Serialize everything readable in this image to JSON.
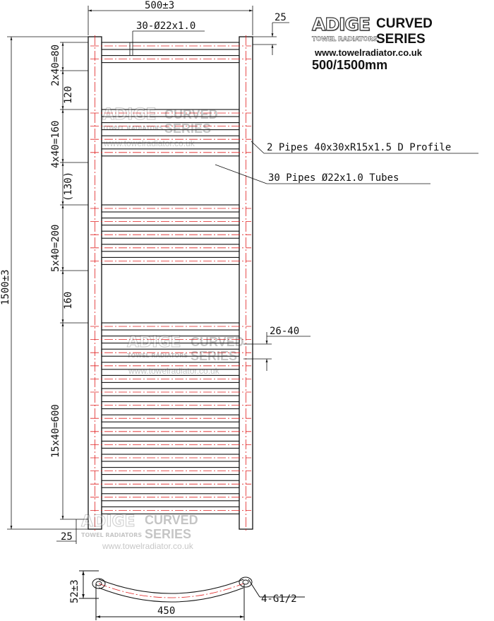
{
  "brand": {
    "name": "ADIGE",
    "sub": "TOWEL RADIATORS",
    "series_line1": "CURVED",
    "series_line2": "SERIES",
    "url": "www.towelradiator.co.uk",
    "size": "500/1500mm"
  },
  "dimensions": {
    "overall_width": "500±3",
    "rail_offset": "25",
    "tube_spec": "30-Ø22x1.0",
    "overall_height": "1500±3",
    "bottom_offset": "25",
    "group1": "2x40=80",
    "gap1": "120",
    "group2": "4x40=160",
    "gap2": "(130)",
    "group3": "5x40=200",
    "gap3": "160",
    "group4": "15x40=600",
    "tube_gap": "26-40",
    "depth": "52±3",
    "centres": "450",
    "connections": "4-G1/2"
  },
  "callouts": {
    "profile": "2 Pipes 40x30xR15x1.5 D Profile",
    "tubes": "30 Pipes Ø22x1.0 Tubes"
  },
  "colors": {
    "line": "#111111",
    "centerline": "#e02020"
  }
}
